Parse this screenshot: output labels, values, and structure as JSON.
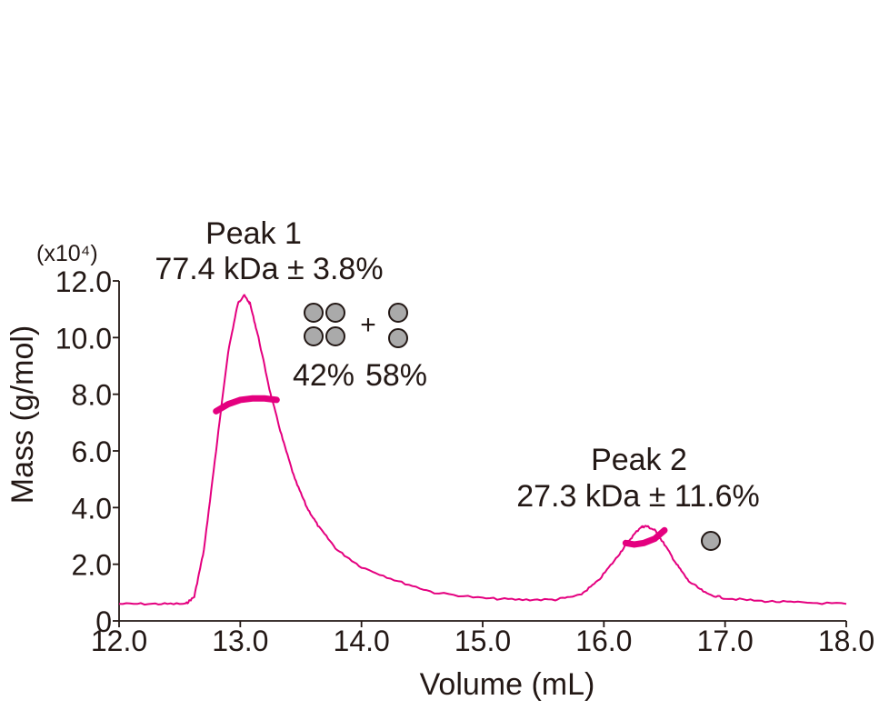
{
  "chart_data": {
    "type": "line",
    "xlabel": "Volume (mL)",
    "ylabel": "Mass (g/mol)",
    "y_scale_label": "(x10⁴)",
    "xlim": [
      12.0,
      18.0
    ],
    "ylim": [
      0,
      12.0
    ],
    "x_ticks": [
      "12.0",
      "13.0",
      "14.0",
      "15.0",
      "16.0",
      "17.0",
      "18.0"
    ],
    "y_ticks": [
      "0",
      "2.0",
      "4.0",
      "6.0",
      "8.0",
      "10.0",
      "12.0"
    ],
    "color": "#e4007f",
    "trace": {
      "x": [
        12.0,
        12.3,
        12.55,
        12.62,
        12.7,
        12.8,
        12.9,
        12.98,
        13.03,
        13.08,
        13.15,
        13.25,
        13.35,
        13.45,
        13.55,
        13.65,
        13.8,
        14.0,
        14.3,
        14.6,
        15.0,
        15.3,
        15.6,
        15.8,
        15.95,
        16.1,
        16.2,
        16.3,
        16.35,
        16.42,
        16.5,
        16.6,
        16.7,
        16.85,
        17.0,
        17.3,
        17.6,
        18.0
      ],
      "y": [
        0.6,
        0.6,
        0.6,
        0.85,
        2.5,
        6.0,
        9.5,
        11.2,
        11.5,
        11.2,
        10.0,
        8.0,
        6.4,
        5.0,
        4.0,
        3.3,
        2.5,
        1.9,
        1.4,
        1.0,
        0.8,
        0.75,
        0.75,
        0.9,
        1.4,
        2.2,
        2.8,
        3.3,
        3.35,
        3.2,
        2.7,
        2.0,
        1.4,
        0.95,
        0.8,
        0.7,
        0.65,
        0.6
      ]
    },
    "mass_segments": [
      {
        "x": [
          12.8,
          12.9,
          13.0,
          13.1,
          13.2,
          13.3
        ],
        "y": [
          7.4,
          7.65,
          7.8,
          7.85,
          7.85,
          7.8
        ]
      },
      {
        "x": [
          16.18,
          16.25,
          16.33,
          16.42,
          16.5
        ],
        "y": [
          2.75,
          2.7,
          2.75,
          2.9,
          3.2
        ]
      }
    ],
    "annotations": {
      "peak1_title": "Peak 1",
      "peak1_mass": "77.4 kDa ± 3.8%",
      "peak1_plus": "+",
      "peak1_pct_a": "42%",
      "peak1_pct_b": "58%",
      "peak2_title": "Peak 2",
      "peak2_mass": "27.3 kDa ± 11.6%"
    }
  }
}
